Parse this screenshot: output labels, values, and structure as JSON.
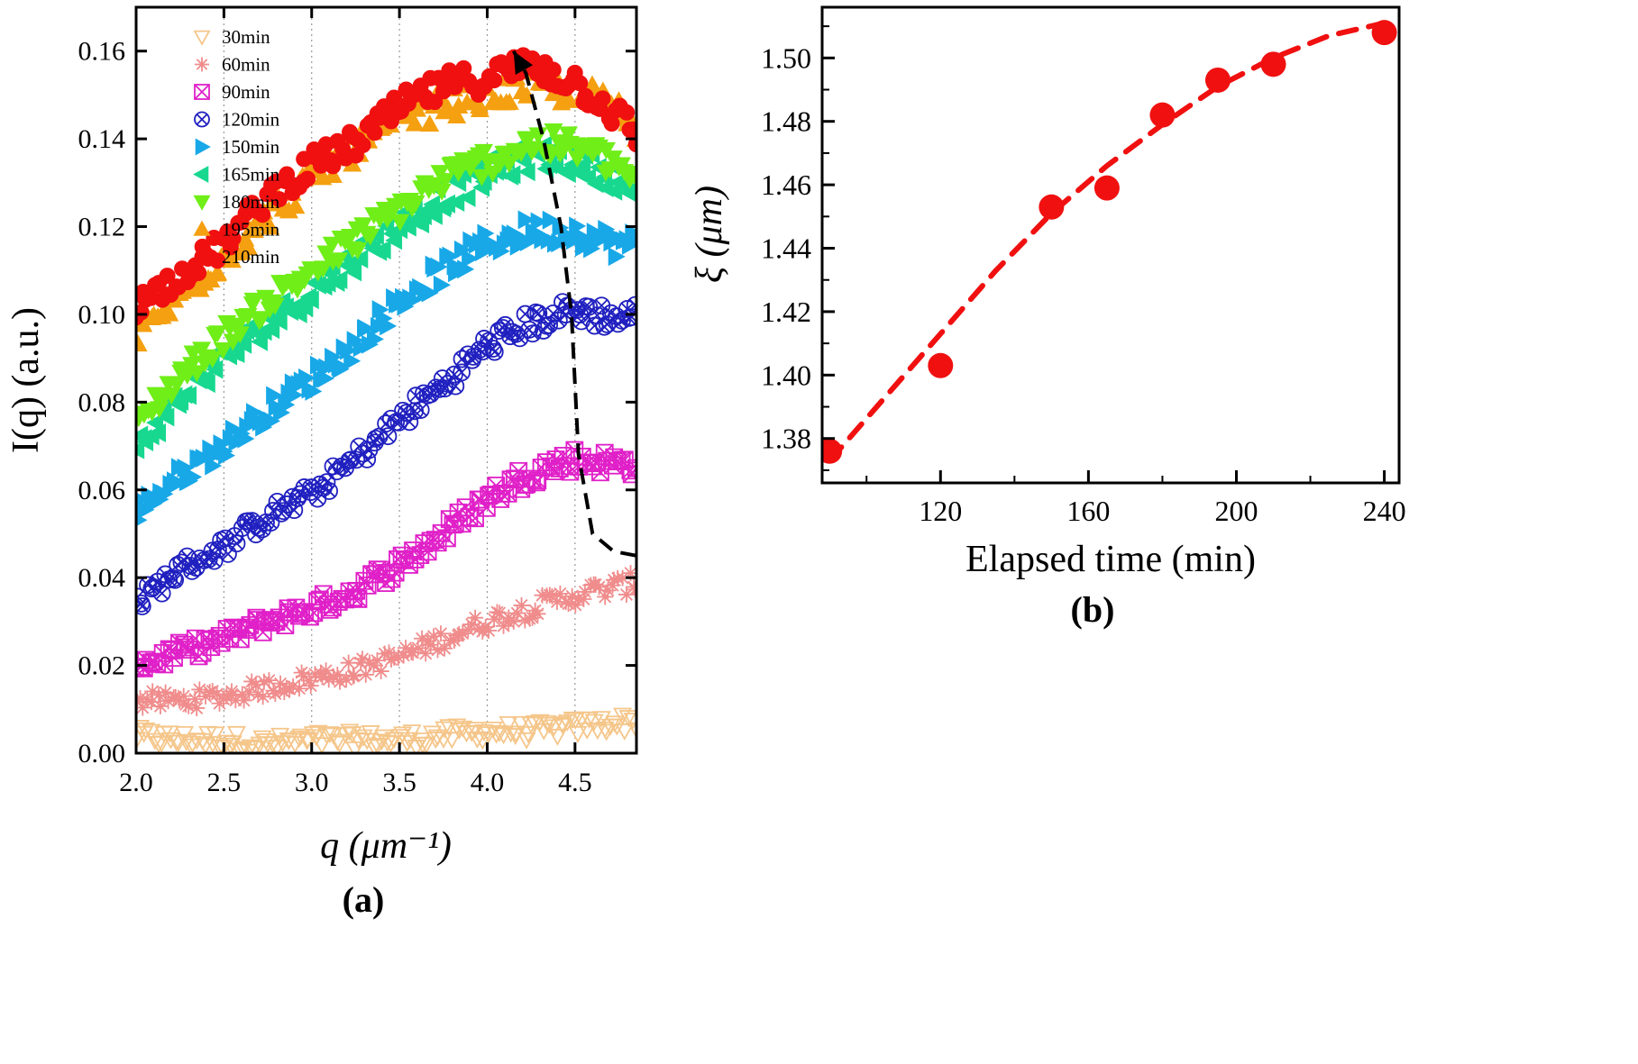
{
  "chart_data": [
    {
      "panel_label": "(a)",
      "type": "scatter",
      "xlabel": "q  (μm⁻¹)",
      "ylabel": "I(q)  (a.u.)",
      "xlim": [
        2.0,
        4.85
      ],
      "ylim": [
        0.0,
        0.17
      ],
      "xticks": [
        2.0,
        2.5,
        3.0,
        3.5,
        4.0,
        4.5
      ],
      "xtick_labels": [
        "2.0",
        "2.5",
        "3.0",
        "3.5",
        "4.0",
        "4.5"
      ],
      "yticks": [
        0.0,
        0.02,
        0.04,
        0.06,
        0.08,
        0.1,
        0.12,
        0.14,
        0.16
      ],
      "ytick_labels": [
        "0.00",
        "0.02",
        "0.04",
        "0.06",
        "0.08",
        "0.10",
        "0.12",
        "0.14",
        "0.16"
      ],
      "grid": "vertical dotted",
      "legend_position": "top-left",
      "series": [
        {
          "name": "30min",
          "marker": "triangle-down-open",
          "color": "#f5c68a",
          "x": [
            2.0,
            2.25,
            2.5,
            2.75,
            3.0,
            3.25,
            3.5,
            3.75,
            4.0,
            4.25,
            4.5,
            4.75,
            4.85
          ],
          "y": [
            0.004,
            0.003,
            0.003,
            0.002,
            0.003,
            0.003,
            0.003,
            0.004,
            0.005,
            0.005,
            0.006,
            0.007,
            0.007
          ]
        },
        {
          "name": "60min",
          "marker": "asterisk",
          "color": "#f08c8c",
          "x": [
            2.0,
            2.25,
            2.5,
            2.75,
            3.0,
            3.25,
            3.5,
            3.75,
            4.0,
            4.25,
            4.5,
            4.75,
            4.85
          ],
          "y": [
            0.012,
            0.012,
            0.013,
            0.015,
            0.017,
            0.019,
            0.022,
            0.026,
            0.03,
            0.033,
            0.036,
            0.038,
            0.039
          ]
        },
        {
          "name": "90min",
          "marker": "square-x-open",
          "color": "#e020c8",
          "x": [
            2.0,
            2.25,
            2.5,
            2.75,
            3.0,
            3.25,
            3.5,
            3.75,
            4.0,
            4.25,
            4.5,
            4.75,
            4.85
          ],
          "y": [
            0.02,
            0.023,
            0.026,
            0.03,
            0.033,
            0.037,
            0.043,
            0.05,
            0.058,
            0.064,
            0.067,
            0.066,
            0.066
          ]
        },
        {
          "name": "120min",
          "marker": "circle-x-open",
          "color": "#2020c0",
          "x": [
            2.0,
            2.25,
            2.5,
            2.75,
            3.0,
            3.25,
            3.5,
            3.75,
            4.0,
            4.25,
            4.5,
            4.75,
            4.85
          ],
          "y": [
            0.034,
            0.042,
            0.047,
            0.054,
            0.059,
            0.067,
            0.076,
            0.084,
            0.093,
            0.098,
            0.101,
            0.099,
            0.1
          ]
        },
        {
          "name": "150min",
          "marker": "triangle-right",
          "color": "#18a8e8",
          "x": [
            2.0,
            2.25,
            2.5,
            2.75,
            3.0,
            3.25,
            3.5,
            3.75,
            4.0,
            4.25,
            4.5,
            4.75,
            4.85
          ],
          "y": [
            0.055,
            0.063,
            0.07,
            0.078,
            0.085,
            0.093,
            0.103,
            0.11,
            0.116,
            0.119,
            0.119,
            0.116,
            0.116
          ]
        },
        {
          "name": "165min",
          "marker": "triangle-left",
          "color": "#18d890",
          "x": [
            2.0,
            2.25,
            2.5,
            2.75,
            3.0,
            3.25,
            3.5,
            3.75,
            4.0,
            4.25,
            4.5,
            4.75,
            4.85
          ],
          "y": [
            0.07,
            0.081,
            0.09,
            0.098,
            0.105,
            0.113,
            0.12,
            0.127,
            0.132,
            0.136,
            0.135,
            0.131,
            0.127
          ]
        },
        {
          "name": "180min",
          "marker": "triangle-down",
          "color": "#70ee18",
          "x": [
            2.0,
            2.25,
            2.5,
            2.75,
            3.0,
            3.25,
            3.5,
            3.75,
            4.0,
            4.25,
            4.5,
            4.75,
            4.85
          ],
          "y": [
            0.075,
            0.086,
            0.095,
            0.103,
            0.11,
            0.117,
            0.124,
            0.131,
            0.135,
            0.139,
            0.138,
            0.134,
            0.13
          ]
        },
        {
          "name": "195min",
          "marker": "triangle-up",
          "color": "#f5a010",
          "x": [
            2.0,
            2.25,
            2.5,
            2.75,
            3.0,
            3.25,
            3.5,
            3.75,
            4.0,
            4.25,
            4.5,
            4.75,
            4.85
          ],
          "y": [
            0.095,
            0.104,
            0.113,
            0.122,
            0.131,
            0.138,
            0.144,
            0.148,
            0.15,
            0.152,
            0.151,
            0.146,
            0.143
          ]
        },
        {
          "name": "210min",
          "marker": "circle",
          "color": "#f01010",
          "x": [
            2.0,
            2.25,
            2.5,
            2.75,
            3.0,
            3.25,
            3.5,
            3.75,
            4.0,
            4.25,
            4.5,
            4.75,
            4.85
          ],
          "y": [
            0.102,
            0.109,
            0.116,
            0.127,
            0.134,
            0.139,
            0.147,
            0.152,
            0.154,
            0.157,
            0.153,
            0.145,
            0.141
          ]
        }
      ],
      "annotation": {
        "type": "dashed-arrow",
        "color": "#000000",
        "path_x": [
          4.85,
          4.72,
          4.6,
          4.52,
          4.48,
          4.42,
          4.32,
          4.22,
          4.15
        ],
        "path_y": [
          0.045,
          0.046,
          0.05,
          0.068,
          0.1,
          0.12,
          0.14,
          0.155,
          0.16
        ]
      }
    },
    {
      "panel_label": "(b)",
      "type": "scatter",
      "xlabel": "Elapsed time (min)",
      "ylabel": "ξ (μm)",
      "xlim": [
        88,
        244
      ],
      "ylim": [
        1.366,
        1.516
      ],
      "xticks": [
        120,
        160,
        200,
        240
      ],
      "xtick_labels": [
        "120",
        "160",
        "200",
        "240"
      ],
      "yticks": [
        1.38,
        1.4,
        1.42,
        1.44,
        1.46,
        1.48,
        1.5
      ],
      "ytick_labels": [
        "1.38",
        "1.40",
        "1.42",
        "1.44",
        "1.46",
        "1.48",
        "1.50"
      ],
      "grid": "off",
      "points": {
        "color": "#f01010",
        "x": [
          90,
          120,
          150,
          165,
          180,
          195,
          210,
          240
        ],
        "y": [
          1.376,
          1.403,
          1.453,
          1.459,
          1.482,
          1.493,
          1.498,
          1.508
        ]
      },
      "fit_line": {
        "style": "dashed",
        "color": "#f01010",
        "x": [
          90,
          105,
          120,
          135,
          150,
          165,
          180,
          195,
          210,
          225,
          240
        ],
        "y": [
          1.373,
          1.393,
          1.413,
          1.433,
          1.451,
          1.466,
          1.479,
          1.491,
          1.5,
          1.507,
          1.511
        ]
      }
    }
  ]
}
